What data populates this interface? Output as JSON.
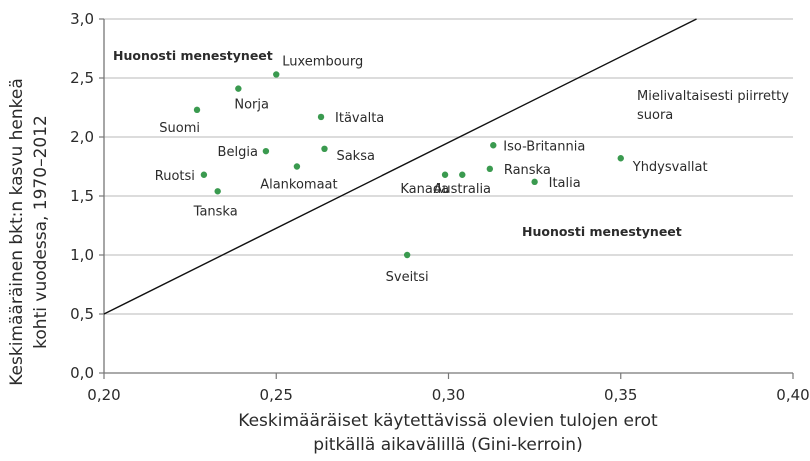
{
  "chart_data": {
    "type": "scatter",
    "title": "",
    "xlabel": "Keskimääräiset käytettävissä olevien tulojen erot pitkällä aikavälillä (Gini-kerroin)",
    "xlabel_lines": [
      "Keskimääräiset käytettävissä olevien tulojen erot",
      "pitkällä aikavälillä (Gini-kerroin)"
    ],
    "ylabel": "Keskimääräinen bktn kasvu henkeä kohti vuodessa, 1970–2012",
    "ylabel_lines": [
      "Keskimääräinen bkt:n kasvu henkeä",
      "kohti vuodessa, 1970–2012"
    ],
    "xlim": [
      0.2,
      0.4
    ],
    "ylim": [
      0.0,
      3.0
    ],
    "x_ticks": [
      "0,20",
      "0,25",
      "0,30",
      "0,35",
      "0,40"
    ],
    "y_ticks": [
      "0,0",
      "0,5",
      "1,0",
      "1,5",
      "2,0",
      "2,5",
      "3,0"
    ],
    "grid": "horizontal",
    "point_color": "#3a9a4f",
    "series": [
      {
        "name": "Maat",
        "points": [
          {
            "label": "Luxembourg",
            "x": 0.25,
            "y": 2.53
          },
          {
            "label": "Norja",
            "x": 0.239,
            "y": 2.41
          },
          {
            "label": "Suomi",
            "x": 0.227,
            "y": 2.23
          },
          {
            "label": "Itävalta",
            "x": 0.263,
            "y": 2.17
          },
          {
            "label": "Belgia",
            "x": 0.247,
            "y": 1.88
          },
          {
            "label": "Saksa",
            "x": 0.264,
            "y": 1.9
          },
          {
            "label": "Alankomaat",
            "x": 0.256,
            "y": 1.75
          },
          {
            "label": "Ruotsi",
            "x": 0.229,
            "y": 1.68
          },
          {
            "label": "Tanska",
            "x": 0.233,
            "y": 1.54
          },
          {
            "label": "Iso-Britannia",
            "x": 0.313,
            "y": 1.93
          },
          {
            "label": "Ranska",
            "x": 0.312,
            "y": 1.73
          },
          {
            "label": "Kanada",
            "x": 0.299,
            "y": 1.68
          },
          {
            "label": "Australia",
            "x": 0.304,
            "y": 1.68
          },
          {
            "label": "Italia",
            "x": 0.325,
            "y": 1.62
          },
          {
            "label": "Yhdysvallat",
            "x": 0.35,
            "y": 1.82
          },
          {
            "label": "Sveitsi",
            "x": 0.288,
            "y": 1.0
          }
        ]
      }
    ],
    "reference_line": {
      "label": "Mielivaltaisesti piirretty suora",
      "label_lines": [
        "Mielivaltaisesti piirretty",
        "suora"
      ],
      "x1": 0.2,
      "y1": 0.5,
      "x2": 0.372,
      "y2": 3.0
    },
    "annotations": [
      {
        "text": "Huonosti menestyneet",
        "x": 0.203,
        "y": 2.6
      },
      {
        "text": "Huonosti menestyneet",
        "x": 0.321,
        "y": 1.2
      }
    ]
  }
}
